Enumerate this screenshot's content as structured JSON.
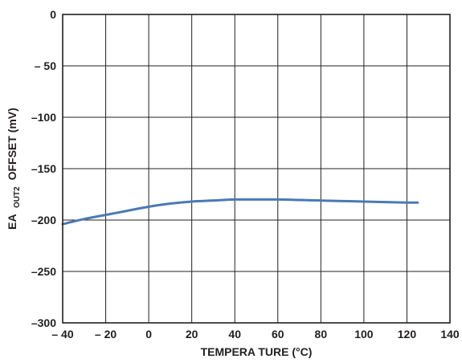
{
  "chart_data": {
    "type": "line",
    "xlabel": "TEMPERA  TURE (°C)",
    "ylabel": {
      "prefix": "EA",
      "subscript": "OUT2",
      "suffix": "OFFSET (mV)"
    },
    "xlim": [
      -40,
      140
    ],
    "ylim": [
      -300,
      0
    ],
    "x_ticks": [
      -40,
      -20,
      0,
      20,
      40,
      60,
      80,
      100,
      120,
      140
    ],
    "x_tick_labels": [
      "– 40",
      "– 20",
      "0",
      "20",
      "40",
      "60",
      "80",
      "100",
      "120",
      "140"
    ],
    "y_ticks": [
      0,
      -50,
      -100,
      -150,
      -200,
      -250,
      -300
    ],
    "y_tick_labels": [
      "0",
      "– 50",
      "–100",
      "–150",
      "–200",
      "–250",
      "–300"
    ],
    "grid": true,
    "series": [
      {
        "color": "#4a7ab5",
        "x": [
          -40,
          -30,
          -20,
          -10,
          0,
          10,
          20,
          30,
          40,
          50,
          60,
          70,
          80,
          90,
          100,
          110,
          120,
          125
        ],
        "y": [
          -204,
          -199,
          -195,
          -191,
          -187,
          -184,
          -182,
          -181,
          -180,
          -180,
          -180,
          -180.5,
          -181,
          -181.5,
          -182,
          -182.5,
          -183,
          -183
        ]
      }
    ]
  }
}
